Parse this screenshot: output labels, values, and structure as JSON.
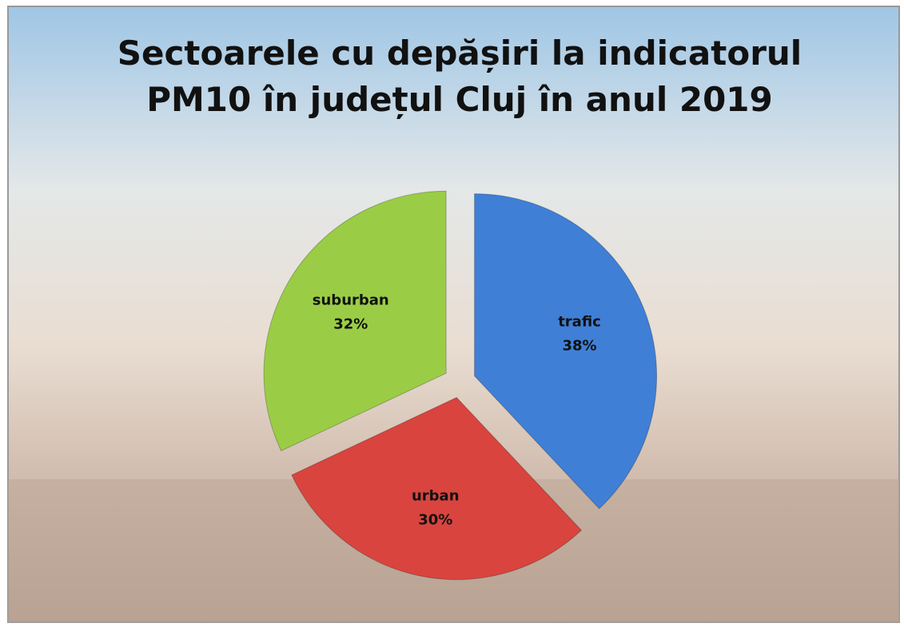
{
  "chart_data": {
    "type": "pie",
    "title": "Sectoarele cu depășiri la indicatorul PM10 în județul Cluj în anul 2019",
    "categories": [
      "trafic",
      "urban",
      "suburban"
    ],
    "values": [
      38,
      30,
      32
    ],
    "value_labels": [
      "38%",
      "30%",
      "32%"
    ],
    "colors": [
      "#3f7fd6",
      "#d9443f",
      "#9acd45"
    ]
  }
}
